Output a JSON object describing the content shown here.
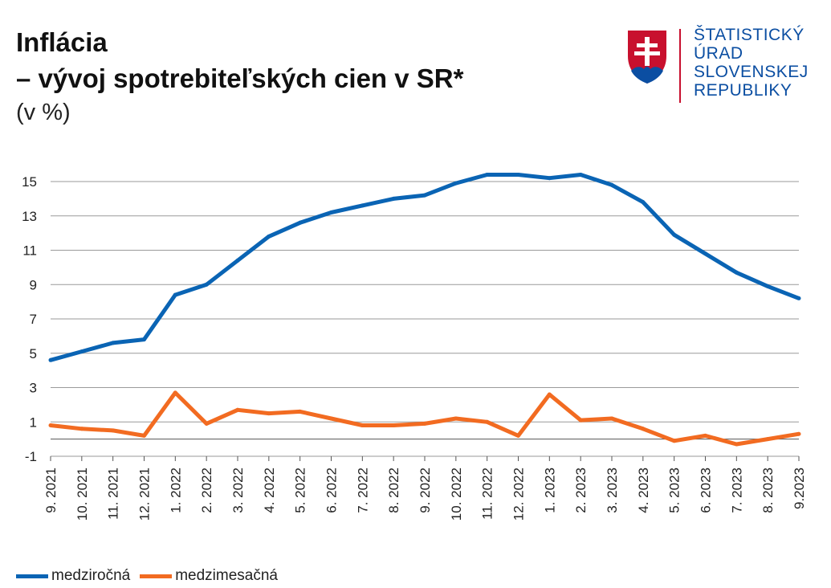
{
  "header": {
    "title_line1": "Inflácia",
    "title_line2": "– vývoj spotrebiteľských cien v SR*",
    "subtitle": "(v %)"
  },
  "logo": {
    "line1": "ŠTATISTICKÝ",
    "line2": "ÚRAD",
    "line3": "SLOVENSKEJ",
    "line4": "REPUBLIKY",
    "icon": "slovak-coat-of-arms-icon"
  },
  "colors": {
    "series1": "#0a64b4",
    "series2": "#f26b21",
    "grid": "#9a9a9a",
    "brand_blue": "#0b4ea2",
    "brand_red": "#c8102e"
  },
  "chart_data": {
    "type": "line",
    "title": "Inflácia – vývoj spotrebiteľských cien v SR*",
    "ylabel": "(v %)",
    "xlabel": "",
    "ylim": [
      -1,
      15
    ],
    "yticks": [
      "15",
      "13",
      "11",
      "9",
      "7",
      "5",
      "3",
      "1",
      "-1"
    ],
    "categories": [
      "9. 2021",
      "10. 2021",
      "11. 2021",
      "12. 2021",
      "1. 2022",
      "2. 2022",
      "3. 2022",
      "4. 2022",
      "5. 2022",
      "6. 2022",
      "7. 2022",
      "8. 2022",
      "9. 2022",
      "10. 2022",
      "11. 2022",
      "12. 2022",
      "1. 2023",
      "2. 2023",
      "3. 2023",
      "4. 2023",
      "5. 2023",
      "6. 2023",
      "7. 2023",
      "8. 2023",
      "9.2023"
    ],
    "series": [
      {
        "name": "medziročná",
        "values": [
          4.6,
          5.1,
          5.6,
          5.8,
          8.4,
          9.0,
          10.4,
          11.8,
          12.6,
          13.2,
          13.6,
          14.0,
          14.2,
          14.9,
          15.4,
          15.4,
          15.2,
          15.4,
          14.8,
          13.8,
          11.9,
          10.8,
          9.7,
          8.9,
          8.2
        ]
      },
      {
        "name": "medzimesačná",
        "values": [
          0.8,
          0.6,
          0.5,
          0.2,
          2.7,
          0.9,
          1.7,
          1.5,
          1.6,
          1.2,
          0.8,
          0.8,
          0.9,
          1.2,
          1.0,
          0.2,
          2.6,
          1.1,
          1.2,
          0.6,
          -0.1,
          0.2,
          -0.3,
          0.0,
          0.3
        ]
      }
    ],
    "grid": true,
    "legend_position": "bottom-left"
  }
}
